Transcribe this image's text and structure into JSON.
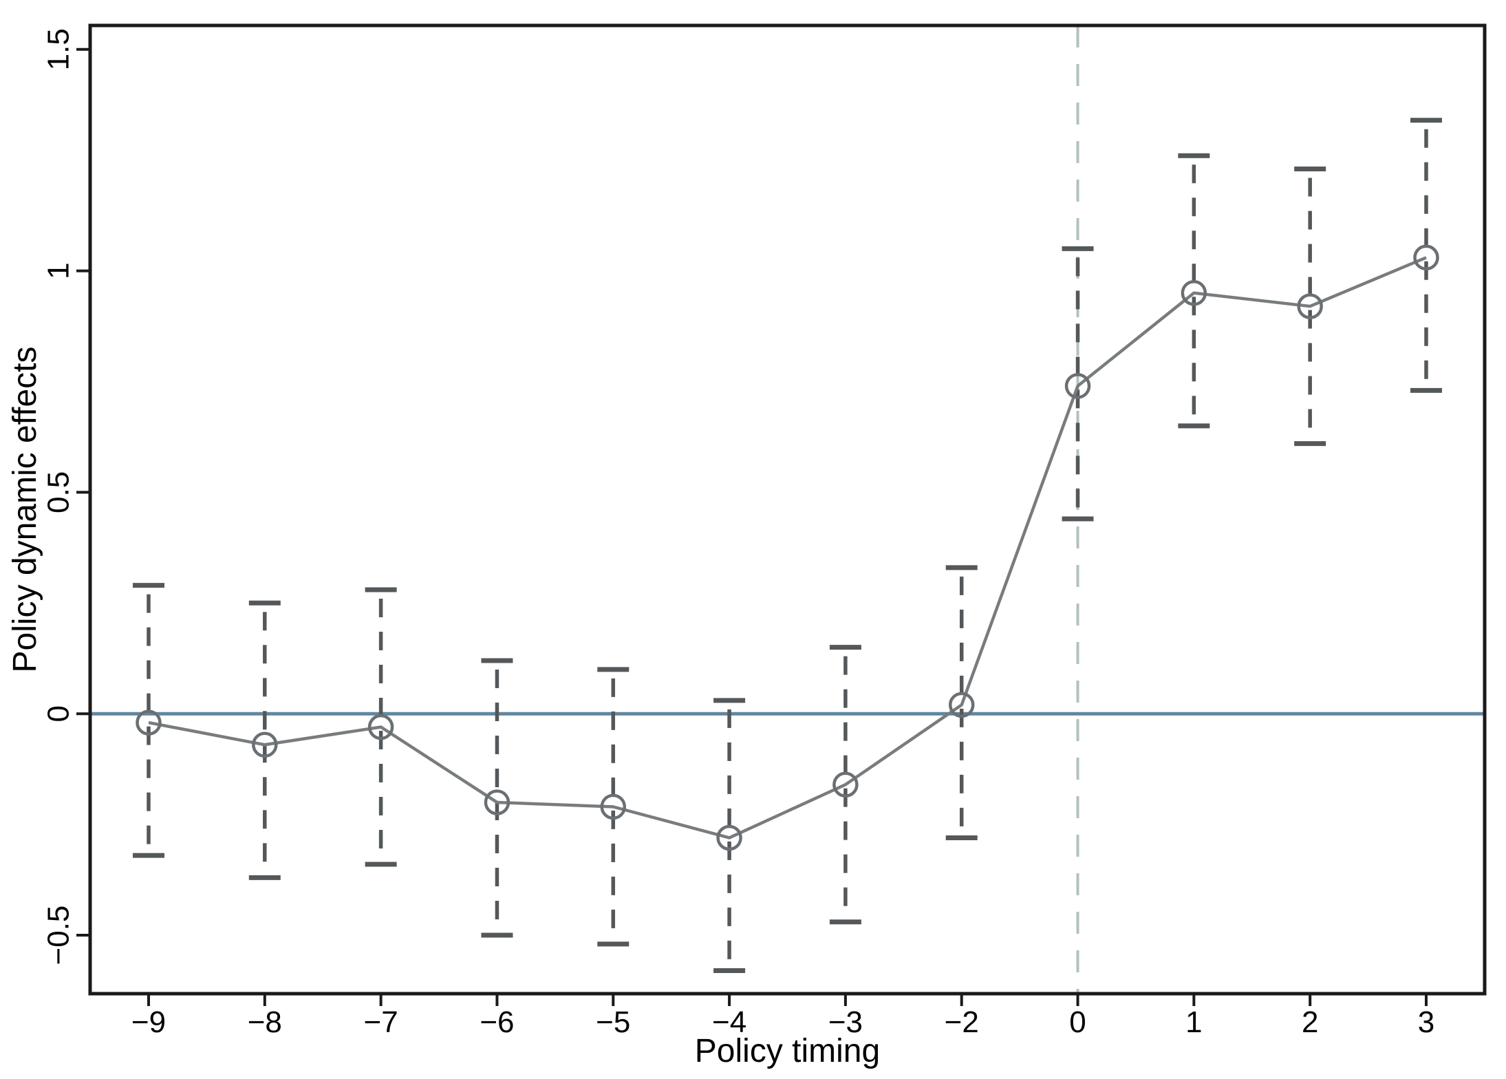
{
  "figure": {
    "background": "#ffffff",
    "frame_color": "#1a1a1a"
  },
  "chart_data": {
    "type": "line",
    "title": "",
    "xlabel": "Policy timing",
    "ylabel": "Policy dynamic effects",
    "x_tick_labels": [
      "−9",
      "−8",
      "−7",
      "−6",
      "−5",
      "−4",
      "−3",
      "−2",
      "0",
      "1",
      "2",
      "3"
    ],
    "x_values": [
      -9,
      -8,
      -7,
      -6,
      -5,
      -4,
      -3,
      -2,
      0,
      1,
      2,
      3
    ],
    "series": [
      {
        "name": "point-estimates",
        "marker": "open-circle",
        "values": [
          -0.02,
          -0.07,
          -0.03,
          -0.2,
          -0.21,
          -0.28,
          -0.16,
          0.02,
          0.74,
          0.95,
          0.92,
          1.03
        ]
      }
    ],
    "ci_low": [
      -0.32,
      -0.37,
      -0.34,
      -0.5,
      -0.52,
      -0.58,
      -0.47,
      -0.28,
      0.44,
      0.65,
      0.61,
      0.73
    ],
    "ci_high": [
      0.29,
      0.25,
      0.28,
      0.12,
      0.1,
      0.03,
      0.15,
      0.33,
      1.05,
      1.26,
      1.23,
      1.34
    ],
    "y_ticks": [
      1.5,
      1,
      0.5,
      0,
      -0.5
    ],
    "y_tick_labels": [
      "1.5",
      "1",
      "0.5",
      "0",
      "−0.5"
    ],
    "ylim": [
      -0.632,
      1.554
    ],
    "grid": false,
    "legend": "none",
    "reference_lines": {
      "horizontal_at_y": 0,
      "vertical_at_x_label": "0"
    },
    "colors": {
      "zero_line": "#6187a0",
      "event_line": "#b2c2bb",
      "series_line": "#787c7e",
      "marker": "#6a6f73",
      "ci": "#54585a",
      "tick": "#1a1a1a"
    }
  }
}
